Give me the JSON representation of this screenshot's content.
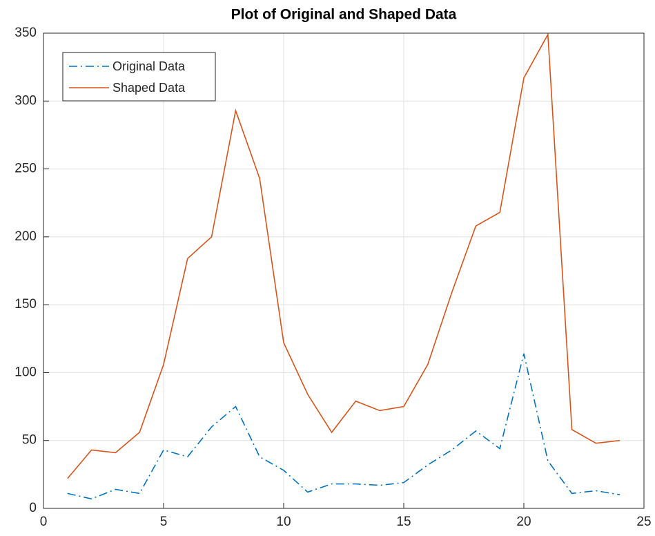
{
  "chart_data": {
    "type": "line",
    "title": "Plot of Original and Shaped Data",
    "x": [
      1,
      2,
      3,
      4,
      5,
      6,
      7,
      8,
      9,
      10,
      11,
      12,
      13,
      14,
      15,
      16,
      17,
      18,
      19,
      20,
      21,
      22,
      23,
      24
    ],
    "series": [
      {
        "name": "Original Data",
        "color": "#0072BD",
        "linestyle": "dashdot",
        "values": [
          11,
          7,
          14,
          11,
          43,
          38,
          60,
          75,
          38,
          28,
          12,
          18,
          18,
          17,
          19,
          32,
          43,
          57,
          44,
          114,
          35,
          11,
          13,
          10
        ]
      },
      {
        "name": "Shaped Data",
        "color": "#D95319",
        "linestyle": "solid",
        "values": [
          22,
          43,
          41,
          56,
          106,
          184,
          200,
          293,
          243,
          122,
          84,
          56,
          79,
          72,
          75,
          106,
          159,
          208,
          218,
          317,
          349,
          58,
          48,
          50
        ]
      }
    ],
    "xlim": [
      0,
      25
    ],
    "xticks": [
      0,
      5,
      10,
      15,
      20,
      25
    ],
    "ylim": [
      0,
      350
    ],
    "yticks": [
      0,
      50,
      100,
      150,
      200,
      250,
      300,
      350
    ],
    "grid": true,
    "legend": "northwest"
  }
}
